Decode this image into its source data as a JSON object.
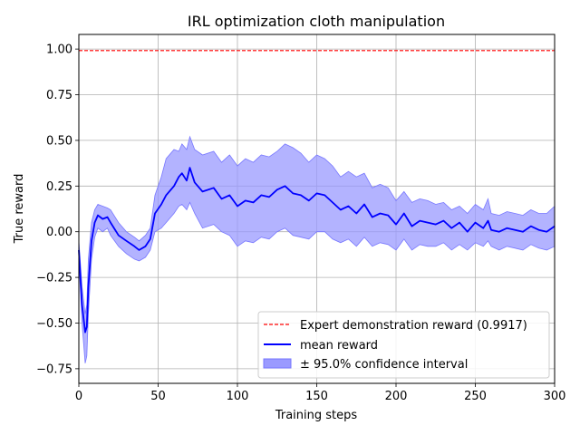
{
  "chart_data": {
    "type": "line",
    "title": "IRL optimization cloth manipulation",
    "xlabel": "Training steps",
    "ylabel": "True reward",
    "xlim": [
      0,
      300
    ],
    "ylim": [
      -0.83,
      1.08
    ],
    "xticks": [
      0,
      50,
      100,
      150,
      200,
      250,
      300
    ],
    "yticks": [
      -0.75,
      -0.5,
      -0.25,
      0.0,
      0.25,
      0.5,
      0.75,
      1.0
    ],
    "xtick_labels": [
      "0",
      "50",
      "100",
      "150",
      "200",
      "250",
      "300"
    ],
    "ytick_labels": [
      "−0.75",
      "−0.50",
      "−0.25",
      "0.00",
      "0.25",
      "0.50",
      "0.75",
      "1.00"
    ],
    "grid": true,
    "legend_position": "lower-right",
    "expert_reward": 0.9917,
    "colors": {
      "expert": "#ff0000",
      "mean": "#0000ff",
      "band_fill": "#9a9aff",
      "band_edge": "#7777ff",
      "grid": "#b0b0b0"
    },
    "series": [
      {
        "name": "Expert demonstration reward (0.9917)",
        "style": "dashed"
      },
      {
        "name": "mean reward",
        "style": "solid"
      },
      {
        "name": "± 95.0% confidence interval",
        "style": "band"
      }
    ],
    "x": [
      0,
      2,
      4,
      5,
      6,
      8,
      10,
      12,
      15,
      18,
      20,
      25,
      30,
      35,
      38,
      42,
      45,
      48,
      52,
      55,
      60,
      63,
      65,
      68,
      70,
      73,
      78,
      85,
      90,
      95,
      100,
      105,
      110,
      115,
      120,
      125,
      130,
      135,
      140,
      145,
      150,
      155,
      160,
      165,
      170,
      175,
      180,
      185,
      190,
      195,
      200,
      205,
      210,
      215,
      220,
      225,
      230,
      235,
      240,
      245,
      250,
      255,
      258,
      260,
      265,
      270,
      275,
      280,
      285,
      290,
      295,
      300
    ],
    "mean": [
      -0.1,
      -0.4,
      -0.55,
      -0.52,
      -0.3,
      -0.05,
      0.05,
      0.09,
      0.07,
      0.08,
      0.05,
      -0.02,
      -0.05,
      -0.08,
      -0.1,
      -0.08,
      -0.04,
      0.1,
      0.15,
      0.2,
      0.25,
      0.3,
      0.32,
      0.28,
      0.35,
      0.27,
      0.22,
      0.24,
      0.18,
      0.2,
      0.14,
      0.17,
      0.16,
      0.2,
      0.19,
      0.23,
      0.25,
      0.21,
      0.2,
      0.17,
      0.21,
      0.2,
      0.16,
      0.12,
      0.14,
      0.1,
      0.15,
      0.08,
      0.1,
      0.09,
      0.04,
      0.1,
      0.03,
      0.06,
      0.05,
      0.04,
      0.06,
      0.02,
      0.05,
      0.0,
      0.05,
      0.02,
      0.06,
      0.01,
      0.0,
      0.02,
      0.01,
      0.0,
      0.03,
      0.01,
      0.0,
      0.03
    ],
    "upper": [
      -0.05,
      -0.3,
      -0.45,
      -0.4,
      -0.15,
      0.05,
      0.12,
      0.15,
      0.14,
      0.13,
      0.12,
      0.05,
      0.0,
      -0.03,
      -0.05,
      -0.02,
      0.02,
      0.2,
      0.3,
      0.4,
      0.45,
      0.44,
      0.48,
      0.45,
      0.52,
      0.45,
      0.42,
      0.44,
      0.38,
      0.42,
      0.36,
      0.4,
      0.38,
      0.42,
      0.41,
      0.44,
      0.48,
      0.46,
      0.43,
      0.38,
      0.42,
      0.4,
      0.36,
      0.3,
      0.33,
      0.3,
      0.32,
      0.24,
      0.26,
      0.24,
      0.17,
      0.22,
      0.16,
      0.18,
      0.17,
      0.15,
      0.16,
      0.12,
      0.14,
      0.1,
      0.15,
      0.12,
      0.18,
      0.1,
      0.09,
      0.11,
      0.1,
      0.09,
      0.12,
      0.1,
      0.1,
      0.14
    ],
    "lower": [
      -0.15,
      -0.5,
      -0.72,
      -0.68,
      -0.45,
      -0.15,
      -0.03,
      0.02,
      0.0,
      0.02,
      -0.02,
      -0.08,
      -0.12,
      -0.15,
      -0.16,
      -0.14,
      -0.1,
      0.0,
      0.02,
      0.05,
      0.1,
      0.14,
      0.15,
      0.12,
      0.16,
      0.1,
      0.02,
      0.04,
      0.0,
      -0.02,
      -0.08,
      -0.05,
      -0.06,
      -0.03,
      -0.04,
      0.0,
      0.02,
      -0.02,
      -0.03,
      -0.04,
      0.0,
      0.0,
      -0.04,
      -0.06,
      -0.04,
      -0.08,
      -0.03,
      -0.08,
      -0.06,
      -0.07,
      -0.1,
      -0.04,
      -0.1,
      -0.07,
      -0.08,
      -0.08,
      -0.06,
      -0.1,
      -0.07,
      -0.1,
      -0.06,
      -0.08,
      -0.05,
      -0.08,
      -0.1,
      -0.08,
      -0.09,
      -0.1,
      -0.07,
      -0.09,
      -0.1,
      -0.08
    ]
  }
}
